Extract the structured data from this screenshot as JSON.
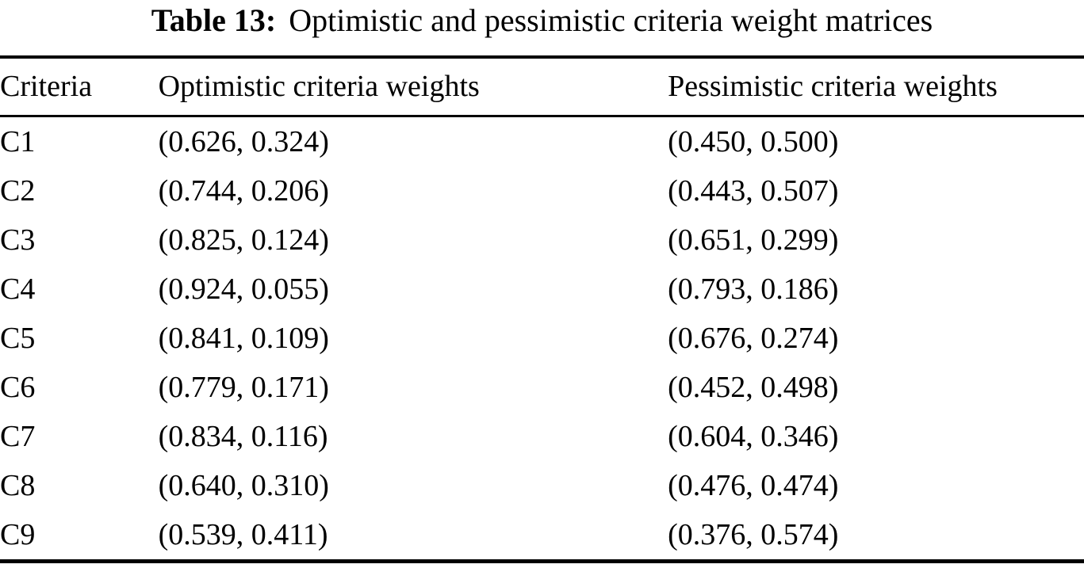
{
  "caption": {
    "label": "Table 13:",
    "text": "Optimistic and pessimistic criteria weight matrices"
  },
  "table": {
    "columns": [
      {
        "key": "criteria",
        "label": "Criteria"
      },
      {
        "key": "optimistic",
        "label": "Optimistic criteria weights"
      },
      {
        "key": "pessimistic",
        "label": "Pessimistic criteria weights"
      }
    ],
    "rows": [
      {
        "criteria": "C1",
        "optimistic": "(0.626, 0.324)",
        "pessimistic": "(0.450, 0.500)"
      },
      {
        "criteria": "C2",
        "optimistic": "(0.744, 0.206)",
        "pessimistic": "(0.443, 0.507)"
      },
      {
        "criteria": "C3",
        "optimistic": "(0.825, 0.124)",
        "pessimistic": "(0.651, 0.299)"
      },
      {
        "criteria": "C4",
        "optimistic": "(0.924, 0.055)",
        "pessimistic": "(0.793, 0.186)"
      },
      {
        "criteria": "C5",
        "optimistic": "(0.841, 0.109)",
        "pessimistic": "(0.676, 0.274)"
      },
      {
        "criteria": "C6",
        "optimistic": "(0.779, 0.171)",
        "pessimistic": "(0.452, 0.498)"
      },
      {
        "criteria": "C7",
        "optimistic": "(0.834, 0.116)",
        "pessimistic": "(0.604, 0.346)"
      },
      {
        "criteria": "C8",
        "optimistic": "(0.640, 0.310)",
        "pessimistic": "(0.476, 0.474)"
      },
      {
        "criteria": "C9",
        "optimistic": "(0.539, 0.411)",
        "pessimistic": "(0.376, 0.574)"
      }
    ]
  },
  "colors": {
    "text": "#000000",
    "background": "#ffffff",
    "rule": "#000000"
  }
}
